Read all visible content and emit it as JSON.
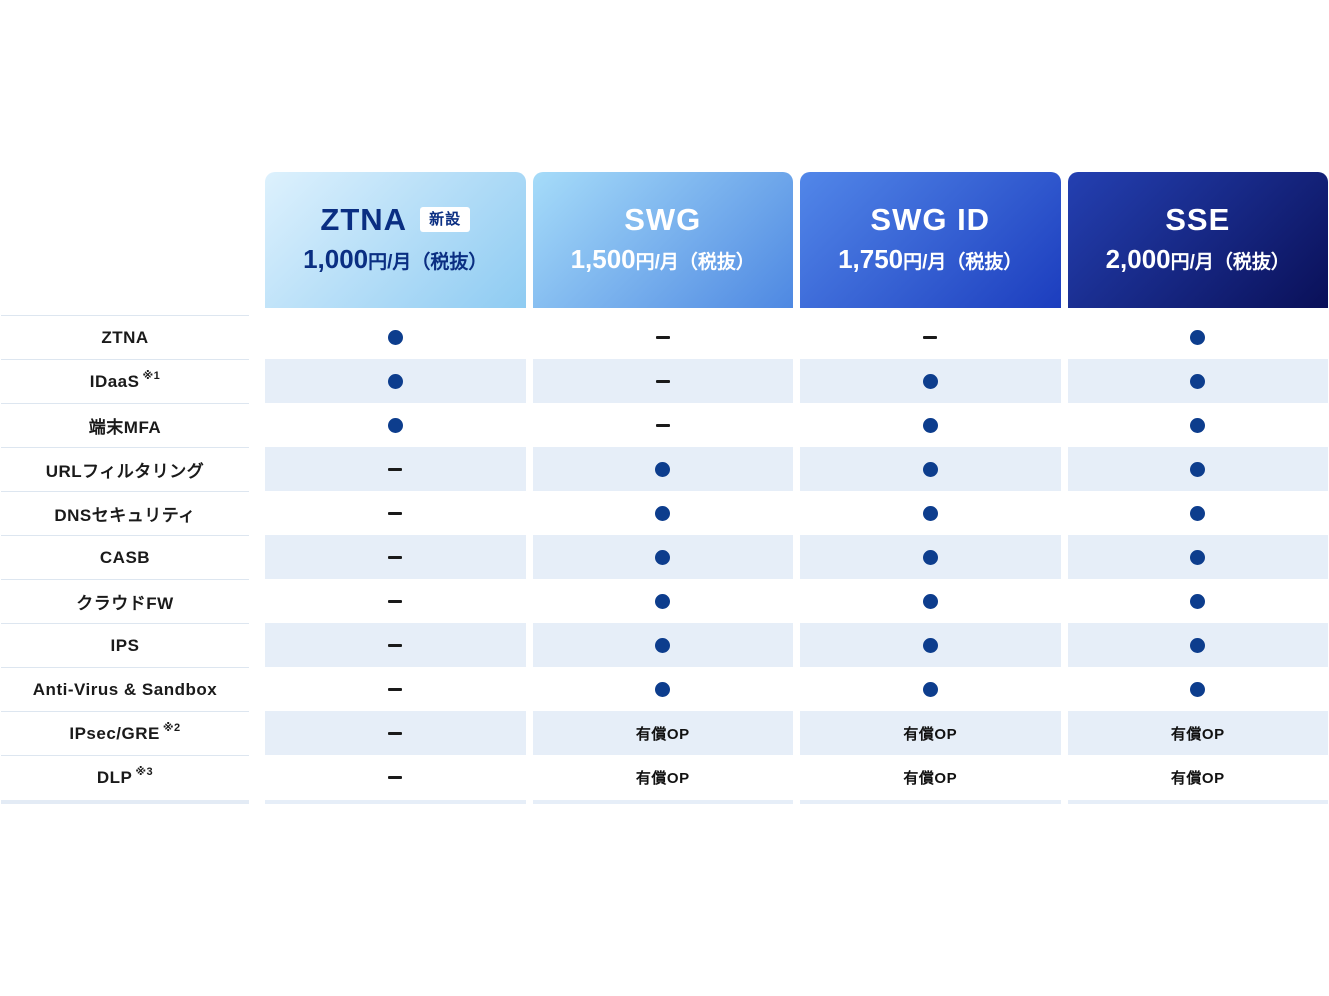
{
  "chart_data": {
    "type": "table",
    "title": "",
    "plans": [
      {
        "name": "ZTNA",
        "badge": "新設",
        "price": "1,000",
        "price_unit": "円/月（税抜）"
      },
      {
        "name": "SWG",
        "badge": "",
        "price": "1,500",
        "price_unit": "円/月（税抜）"
      },
      {
        "name": "SWG ID",
        "badge": "",
        "price": "1,750",
        "price_unit": "円/月（税抜）"
      },
      {
        "name": "SSE",
        "badge": "",
        "price": "2,000",
        "price_unit": "円/月（税抜）"
      }
    ],
    "features": [
      {
        "label": "ZTNA",
        "note": "",
        "values": [
          "included",
          "none",
          "none",
          "included"
        ]
      },
      {
        "label": "IDaaS",
        "note": "※1",
        "values": [
          "included",
          "none",
          "included",
          "included"
        ]
      },
      {
        "label": "端末MFA",
        "note": "",
        "values": [
          "included",
          "none",
          "included",
          "included"
        ]
      },
      {
        "label": "URLフィルタリング",
        "note": "",
        "values": [
          "none",
          "included",
          "included",
          "included"
        ]
      },
      {
        "label": "DNSセキュリティ",
        "note": "",
        "values": [
          "none",
          "included",
          "included",
          "included"
        ]
      },
      {
        "label": "CASB",
        "note": "",
        "values": [
          "none",
          "included",
          "included",
          "included"
        ]
      },
      {
        "label": "クラウドFW",
        "note": "",
        "values": [
          "none",
          "included",
          "included",
          "included"
        ]
      },
      {
        "label": "IPS",
        "note": "",
        "values": [
          "none",
          "included",
          "included",
          "included"
        ]
      },
      {
        "label": "Anti-Virus & Sandbox",
        "note": "",
        "values": [
          "none",
          "included",
          "included",
          "included"
        ]
      },
      {
        "label": "IPsec/GRE",
        "note": "※2",
        "values": [
          "none",
          "paid",
          "paid",
          "paid"
        ]
      },
      {
        "label": "DLP",
        "note": "※3",
        "values": [
          "none",
          "paid",
          "paid",
          "paid"
        ]
      }
    ],
    "paid_option_label": "有償OP",
    "legend": {
      "included": "●",
      "none": "—"
    }
  },
  "styles": {
    "plan_gradients": [
      [
        "#ddf1fd",
        "#8ecbf2"
      ],
      [
        "#a6dcf9",
        "#4e88e2"
      ],
      [
        "#5287e9",
        "#1c3dbe"
      ],
      [
        "#2440b2",
        "#0a1058"
      ]
    ],
    "plan_text_colors": [
      "#0a2e82",
      "#ffffff",
      "#ffffff",
      "#ffffff"
    ],
    "badge_bg": "#ffffff",
    "badge_text": "#0a2e82",
    "dot_color": "#0d3d8d",
    "row_alt_color": "#e6eef8",
    "separator_color": "#dde6f0"
  }
}
